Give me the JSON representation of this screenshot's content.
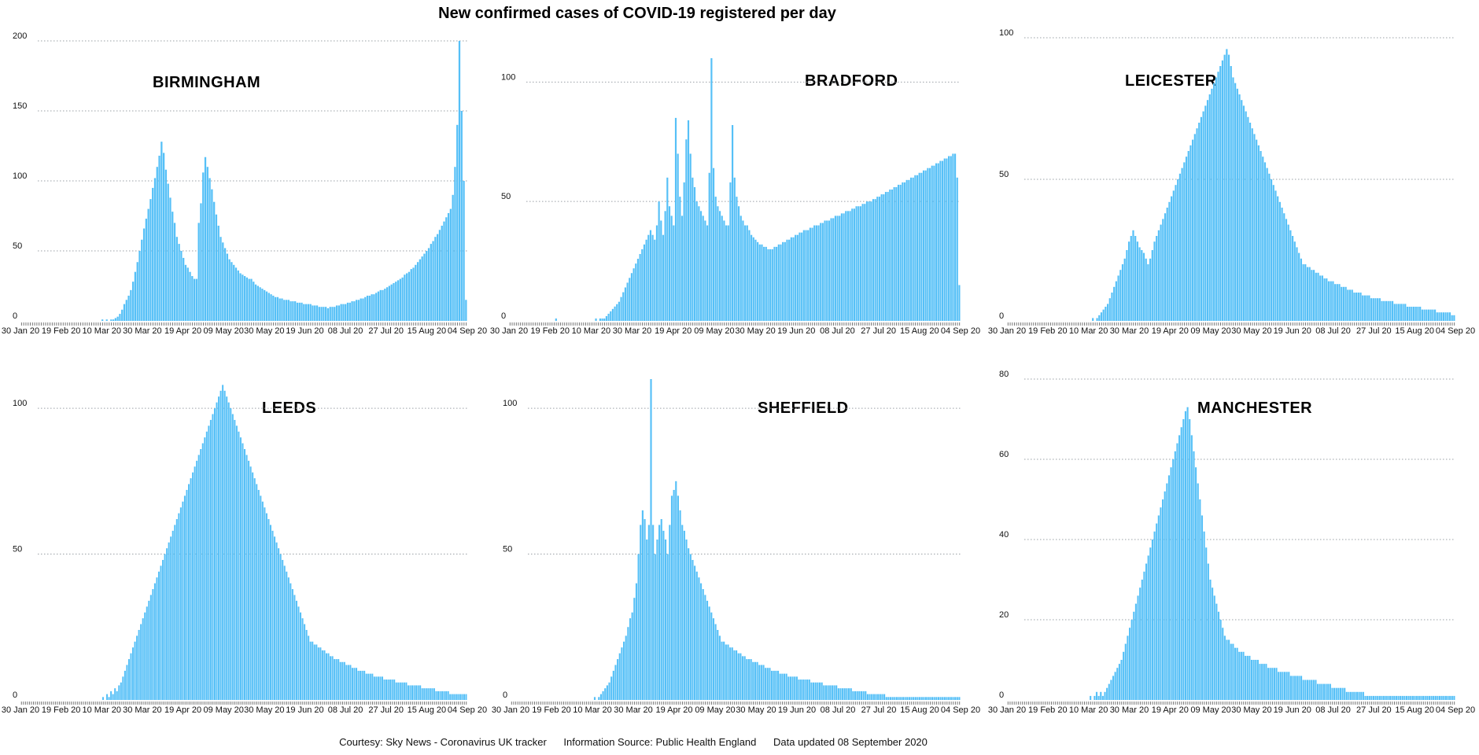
{
  "title": "New confirmed cases of COVID-19 registered per day",
  "footer": {
    "courtesy": "Courtesy: Sky News - Coronavirus UK tracker",
    "source": "Information Source: Public Health England",
    "updated": "Data updated 08 September 2020"
  },
  "chart_data": [
    {
      "type": "bar",
      "title": "BIRMINGHAM",
      "x_start": "30 Jan 20",
      "x_tick_labels": [
        "30 Jan 20",
        "19 Feb 20",
        "10 Mar 20",
        "30 Mar 20",
        "19 Apr 20",
        "09 May 20",
        "30 May 20",
        "19 Jun 20",
        "08 Jul 20",
        "27 Jul 20",
        "15 Aug 20",
        "04 Sep 20"
      ],
      "y_ticks": [
        0,
        50,
        100,
        150,
        200
      ],
      "ylim": [
        0,
        200
      ],
      "values": [
        0,
        0,
        0,
        0,
        0,
        0,
        0,
        0,
        0,
        0,
        0,
        0,
        0,
        0,
        0,
        0,
        0,
        0,
        0,
        0,
        0,
        0,
        0,
        0,
        0,
        0,
        0,
        0,
        0,
        0,
        0,
        0,
        0,
        0,
        0,
        0,
        0,
        1,
        0,
        1,
        0,
        1,
        1,
        2,
        3,
        5,
        8,
        12,
        15,
        18,
        22,
        28,
        35,
        42,
        50,
        58,
        66,
        73,
        80,
        87,
        95,
        102,
        110,
        118,
        128,
        120,
        108,
        98,
        88,
        78,
        70,
        60,
        55,
        50,
        45,
        40,
        38,
        35,
        32,
        30,
        30,
        70,
        84,
        106,
        117,
        110,
        102,
        94,
        85,
        76,
        68,
        60,
        56,
        52,
        48,
        44,
        42,
        40,
        38,
        36,
        34,
        33,
        32,
        31,
        30,
        30,
        28,
        26,
        25,
        24,
        23,
        22,
        21,
        20,
        19,
        18,
        17,
        17,
        16,
        16,
        15,
        15,
        15,
        14,
        14,
        14,
        13,
        13,
        13,
        12,
        12,
        12,
        12,
        11,
        11,
        11,
        10,
        10,
        10,
        10,
        9,
        10,
        10,
        10,
        11,
        11,
        12,
        12,
        12,
        13,
        13,
        14,
        14,
        15,
        15,
        16,
        16,
        17,
        18,
        18,
        19,
        19,
        20,
        21,
        22,
        22,
        23,
        24,
        25,
        26,
        27,
        28,
        29,
        30,
        31,
        33,
        34,
        35,
        37,
        38,
        40,
        42,
        44,
        46,
        48,
        50,
        52,
        55,
        57,
        60,
        62,
        65,
        68,
        71,
        74,
        77,
        80,
        90,
        110,
        140,
        200,
        150,
        100,
        15
      ]
    },
    {
      "type": "bar",
      "title": "BRADFORD",
      "x_tick_labels": [
        "30 Jan 20",
        "19 Feb 20",
        "10 Mar 20",
        "30 Mar 20",
        "19 Apr 20",
        "09 May 20",
        "30 May 20",
        "19 Jun 20",
        "08 Jul 20",
        "27 Jul 20",
        "15 Aug 20",
        "04 Sep 20"
      ],
      "y_ticks": [
        0,
        50,
        100
      ],
      "ylim": [
        0,
        110
      ],
      "values": [
        0,
        0,
        0,
        0,
        0,
        0,
        0,
        0,
        0,
        0,
        0,
        0,
        0,
        0,
        0,
        0,
        0,
        0,
        0,
        0,
        0,
        0,
        1,
        0,
        0,
        0,
        0,
        0,
        0,
        0,
        0,
        0,
        0,
        0,
        0,
        0,
        0,
        0,
        0,
        0,
        0,
        1,
        0,
        1,
        1,
        1,
        2,
        3,
        4,
        5,
        6,
        7,
        8,
        10,
        12,
        14,
        16,
        18,
        20,
        22,
        24,
        26,
        28,
        30,
        32,
        34,
        36,
        38,
        36,
        34,
        40,
        50,
        42,
        36,
        46,
        60,
        48,
        44,
        40,
        85,
        70,
        52,
        44,
        58,
        76,
        84,
        70,
        60,
        56,
        50,
        48,
        46,
        44,
        42,
        40,
        62,
        110,
        64,
        52,
        48,
        46,
        44,
        42,
        40,
        40,
        58,
        82,
        60,
        52,
        48,
        44,
        42,
        40,
        40,
        38,
        36,
        35,
        34,
        33,
        32,
        32,
        31,
        31,
        30,
        30,
        30,
        31,
        31,
        32,
        32,
        33,
        33,
        34,
        34,
        35,
        35,
        36,
        36,
        37,
        37,
        38,
        38,
        38,
        39,
        39,
        40,
        40,
        40,
        41,
        41,
        42,
        42,
        42,
        43,
        43,
        44,
        44,
        44,
        45,
        45,
        46,
        46,
        46,
        47,
        47,
        48,
        48,
        48,
        49,
        49,
        50,
        50,
        50,
        51,
        51,
        52,
        52,
        53,
        53,
        54,
        54,
        55,
        55,
        56,
        56,
        57,
        57,
        58,
        58,
        59,
        59,
        60,
        60,
        61,
        61,
        62,
        62,
        63,
        63,
        64,
        64,
        65,
        65,
        66,
        66,
        67,
        67,
        68,
        68,
        69,
        69,
        70,
        70,
        60,
        15
      ]
    },
    {
      "type": "bar",
      "title": "LEICESTER",
      "x_tick_labels": [
        "30 Jan 20",
        "19 Feb 20",
        "10 Mar 20",
        "30 Mar 20",
        "19 Apr 20",
        "09 May 20",
        "30 May 20",
        "19 Jun 20",
        "08 Jul 20",
        "27 Jul 20",
        "15 Aug 20",
        "04 Sep 20"
      ],
      "y_ticks": [
        0,
        50,
        100
      ],
      "ylim": [
        0,
        100
      ],
      "values": [
        0,
        0,
        0,
        0,
        0,
        0,
        0,
        0,
        0,
        0,
        0,
        0,
        0,
        0,
        0,
        0,
        0,
        0,
        0,
        0,
        0,
        0,
        0,
        0,
        0,
        0,
        0,
        0,
        0,
        0,
        0,
        0,
        0,
        0,
        0,
        0,
        0,
        0,
        0,
        0,
        1,
        0,
        1,
        2,
        3,
        4,
        5,
        6,
        8,
        10,
        12,
        14,
        16,
        18,
        20,
        22,
        25,
        28,
        30,
        32,
        30,
        28,
        26,
        25,
        24,
        22,
        20,
        22,
        25,
        28,
        30,
        32,
        34,
        36,
        38,
        40,
        42,
        44,
        46,
        48,
        50,
        52,
        54,
        56,
        58,
        60,
        62,
        64,
        66,
        68,
        70,
        72,
        74,
        76,
        78,
        80,
        82,
        84,
        86,
        88,
        90,
        92,
        94,
        96,
        94,
        90,
        86,
        84,
        82,
        80,
        78,
        76,
        74,
        72,
        70,
        68,
        66,
        64,
        62,
        60,
        58,
        56,
        54,
        52,
        50,
        48,
        46,
        44,
        42,
        40,
        38,
        36,
        34,
        32,
        30,
        28,
        26,
        24,
        22,
        20,
        20,
        19,
        19,
        18,
        18,
        17,
        17,
        16,
        16,
        15,
        15,
        14,
        14,
        14,
        13,
        13,
        13,
        12,
        12,
        12,
        11,
        11,
        11,
        10,
        10,
        10,
        10,
        9,
        9,
        9,
        9,
        8,
        8,
        8,
        8,
        8,
        7,
        7,
        7,
        7,
        7,
        7,
        6,
        6,
        6,
        6,
        6,
        6,
        5,
        5,
        5,
        5,
        5,
        5,
        5,
        4,
        4,
        4,
        4,
        4,
        4,
        4,
        3,
        3,
        3,
        3,
        3,
        3,
        3,
        2,
        2
      ]
    },
    {
      "type": "bar",
      "title": "LEEDS",
      "x_tick_labels": [
        "30 Jan 20",
        "19 Feb 20",
        "10 Mar 20",
        "30 Mar 20",
        "19 Apr 20",
        "09 May 20",
        "30 May 20",
        "19 Jun 20",
        "08 Jul 20",
        "27 Jul 20",
        "15 Aug 20",
        "04 Sep 20"
      ],
      "y_ticks": [
        0,
        50,
        100
      ],
      "ylim": [
        0,
        110
      ],
      "values": [
        0,
        0,
        0,
        0,
        0,
        0,
        0,
        0,
        0,
        0,
        0,
        0,
        0,
        0,
        0,
        0,
        0,
        0,
        0,
        0,
        0,
        0,
        0,
        0,
        0,
        0,
        0,
        0,
        0,
        0,
        0,
        0,
        0,
        0,
        0,
        0,
        0,
        0,
        0,
        0,
        0,
        1,
        0,
        2,
        1,
        3,
        2,
        4,
        3,
        5,
        6,
        8,
        10,
        12,
        14,
        16,
        18,
        20,
        22,
        24,
        26,
        28,
        30,
        32,
        34,
        36,
        38,
        40,
        42,
        44,
        46,
        48,
        50,
        52,
        54,
        56,
        58,
        60,
        62,
        64,
        66,
        68,
        70,
        72,
        74,
        76,
        78,
        80,
        82,
        84,
        86,
        88,
        90,
        92,
        94,
        96,
        98,
        100,
        102,
        104,
        106,
        108,
        106,
        104,
        102,
        100,
        98,
        96,
        94,
        92,
        90,
        88,
        86,
        84,
        82,
        80,
        78,
        76,
        74,
        72,
        70,
        68,
        66,
        64,
        62,
        60,
        58,
        56,
        54,
        52,
        50,
        48,
        46,
        44,
        42,
        40,
        38,
        36,
        34,
        32,
        30,
        28,
        26,
        24,
        22,
        20,
        20,
        19,
        19,
        18,
        18,
        17,
        17,
        16,
        16,
        15,
        15,
        14,
        14,
        14,
        13,
        13,
        13,
        12,
        12,
        12,
        11,
        11,
        11,
        10,
        10,
        10,
        10,
        9,
        9,
        9,
        9,
        8,
        8,
        8,
        8,
        8,
        7,
        7,
        7,
        7,
        7,
        7,
        6,
        6,
        6,
        6,
        6,
        6,
        5,
        5,
        5,
        5,
        5,
        5,
        5,
        4,
        4,
        4,
        4,
        4,
        4,
        4,
        3,
        3,
        3,
        3,
        3,
        3,
        3,
        2,
        2,
        2,
        2,
        2,
        2,
        2,
        2,
        2
      ]
    },
    {
      "type": "bar",
      "title": "SHEFFIELD",
      "x_tick_labels": [
        "30 Jan 20",
        "19 Feb 20",
        "10 Mar 20",
        "30 Mar 20",
        "19 Apr 20",
        "09 May 20",
        "30 May 20",
        "19 Jun 20",
        "08 Jul 20",
        "27 Jul 20",
        "15 Aug 20",
        "04 Sep 20"
      ],
      "y_ticks": [
        0,
        50,
        100
      ],
      "ylim": [
        0,
        110
      ],
      "values": [
        0,
        0,
        0,
        0,
        0,
        0,
        0,
        0,
        0,
        0,
        0,
        0,
        0,
        0,
        0,
        0,
        0,
        0,
        0,
        0,
        0,
        0,
        0,
        0,
        0,
        0,
        0,
        0,
        0,
        0,
        0,
        0,
        0,
        0,
        0,
        0,
        0,
        0,
        0,
        0,
        1,
        0,
        1,
        2,
        3,
        4,
        5,
        6,
        8,
        10,
        12,
        14,
        16,
        18,
        20,
        22,
        25,
        28,
        30,
        35,
        40,
        50,
        60,
        65,
        62,
        55,
        60,
        110,
        60,
        50,
        55,
        60,
        62,
        58,
        55,
        50,
        60,
        70,
        72,
        75,
        70,
        65,
        60,
        58,
        55,
        52,
        50,
        48,
        46,
        44,
        42,
        40,
        38,
        36,
        34,
        32,
        30,
        28,
        26,
        24,
        22,
        20,
        20,
        19,
        19,
        18,
        18,
        17,
        17,
        16,
        16,
        15,
        15,
        14,
        14,
        14,
        13,
        13,
        13,
        12,
        12,
        12,
        11,
        11,
        11,
        10,
        10,
        10,
        10,
        9,
        9,
        9,
        9,
        8,
        8,
        8,
        8,
        8,
        7,
        7,
        7,
        7,
        7,
        7,
        6,
        6,
        6,
        6,
        6,
        6,
        5,
        5,
        5,
        5,
        5,
        5,
        5,
        4,
        4,
        4,
        4,
        4,
        4,
        4,
        3,
        3,
        3,
        3,
        3,
        3,
        3,
        2,
        2,
        2,
        2,
        2,
        2,
        2,
        2,
        2,
        1,
        1,
        1,
        1,
        1,
        1,
        1,
        1,
        1,
        1,
        1,
        1,
        1,
        1,
        1,
        1,
        1,
        1,
        1,
        1,
        1,
        1,
        1,
        1,
        1,
        1,
        1,
        1,
        1,
        1,
        1,
        1,
        1,
        1,
        1,
        1
      ]
    },
    {
      "type": "bar",
      "title": "MANCHESTER",
      "x_tick_labels": [
        "30 Jan 20",
        "19 Feb 20",
        "10 Mar 20",
        "30 Mar 20",
        "19 Apr 20",
        "09 May 20",
        "30 May 20",
        "19 Jun 20",
        "08 Jul 20",
        "27 Jul 20",
        "15 Aug 20",
        "04 Sep 20"
      ],
      "y_ticks": [
        0,
        20,
        40,
        60,
        80
      ],
      "ylim": [
        0,
        80
      ],
      "values": [
        0,
        0,
        0,
        0,
        0,
        0,
        0,
        0,
        0,
        0,
        0,
        0,
        0,
        0,
        0,
        0,
        0,
        0,
        0,
        0,
        0,
        0,
        0,
        0,
        0,
        0,
        0,
        0,
        0,
        0,
        0,
        0,
        0,
        0,
        0,
        0,
        0,
        0,
        0,
        0,
        1,
        0,
        1,
        2,
        1,
        2,
        1,
        2,
        3,
        4,
        5,
        6,
        7,
        8,
        9,
        10,
        12,
        14,
        16,
        18,
        20,
        22,
        24,
        26,
        28,
        30,
        32,
        34,
        36,
        38,
        40,
        42,
        44,
        46,
        48,
        50,
        52,
        54,
        56,
        58,
        60,
        62,
        64,
        66,
        68,
        70,
        72,
        73,
        70,
        66,
        62,
        58,
        54,
        50,
        46,
        42,
        38,
        34,
        30,
        28,
        26,
        24,
        22,
        20,
        18,
        16,
        15,
        15,
        14,
        14,
        13,
        13,
        12,
        12,
        12,
        11,
        11,
        11,
        10,
        10,
        10,
        10,
        9,
        9,
        9,
        9,
        8,
        8,
        8,
        8,
        8,
        7,
        7,
        7,
        7,
        7,
        7,
        6,
        6,
        6,
        6,
        6,
        6,
        5,
        5,
        5,
        5,
        5,
        5,
        5,
        4,
        4,
        4,
        4,
        4,
        4,
        4,
        3,
        3,
        3,
        3,
        3,
        3,
        3,
        2,
        2,
        2,
        2,
        2,
        2,
        2,
        2,
        2,
        1,
        1,
        1,
        1,
        1,
        1,
        1,
        1,
        1,
        1,
        1,
        1,
        1,
        1,
        1,
        1,
        1,
        1,
        1,
        1,
        1,
        1,
        1,
        1,
        1,
        1,
        1,
        1,
        1,
        1,
        1,
        1,
        1,
        1,
        1,
        1,
        1,
        1,
        1,
        1,
        1,
        1,
        1,
        1
      ]
    }
  ]
}
